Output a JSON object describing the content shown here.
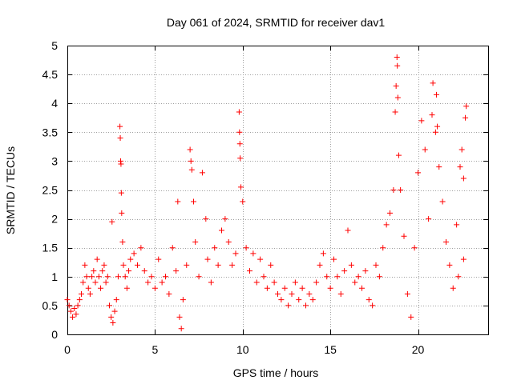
{
  "chart_data": {
    "type": "scatter",
    "title": "Day 061 of 2024, SRMTID for receiver dav1",
    "xlabel": "GPS time / hours",
    "ylabel": "SRMTID / TECUs",
    "xlim": [
      0,
      24
    ],
    "ylim": [
      0,
      5
    ],
    "x_ticks": [
      0,
      5,
      10,
      15,
      20
    ],
    "y_ticks": [
      0,
      0.5,
      1,
      1.5,
      2,
      2.5,
      3,
      3.5,
      4,
      4.5,
      5
    ],
    "x_tick_labels": [
      "0",
      "5",
      "10",
      "15",
      "20"
    ],
    "y_tick_labels": [
      "0",
      "0.5",
      "1",
      "1.5",
      "2",
      "2.5",
      "3",
      "3.5",
      "4",
      "4.5",
      "5"
    ],
    "grid": true,
    "marker": "+",
    "color": "#ff0000",
    "series": [
      {
        "name": "SRMTID",
        "points": [
          [
            0.0,
            0.6
          ],
          [
            0.1,
            0.5
          ],
          [
            0.2,
            0.4
          ],
          [
            0.3,
            0.3
          ],
          [
            0.4,
            0.45
          ],
          [
            0.5,
            0.35
          ],
          [
            0.6,
            0.5
          ],
          [
            0.7,
            0.6
          ],
          [
            0.8,
            0.7
          ],
          [
            0.9,
            0.9
          ],
          [
            1.0,
            1.2
          ],
          [
            1.1,
            1.0
          ],
          [
            1.2,
            0.8
          ],
          [
            1.3,
            0.7
          ],
          [
            1.4,
            1.0
          ],
          [
            1.5,
            1.1
          ],
          [
            1.6,
            0.9
          ],
          [
            1.7,
            1.3
          ],
          [
            1.8,
            1.0
          ],
          [
            1.9,
            0.8
          ],
          [
            2.0,
            1.1
          ],
          [
            2.1,
            1.2
          ],
          [
            2.2,
            0.9
          ],
          [
            2.3,
            1.0
          ],
          [
            2.4,
            0.5
          ],
          [
            2.5,
            0.3
          ],
          [
            2.55,
            1.95
          ],
          [
            2.6,
            0.2
          ],
          [
            2.7,
            0.4
          ],
          [
            2.8,
            0.6
          ],
          [
            2.9,
            1.0
          ],
          [
            3.0,
            3.6
          ],
          [
            3.02,
            3.4
          ],
          [
            3.04,
            3.0
          ],
          [
            3.06,
            2.95
          ],
          [
            3.08,
            2.45
          ],
          [
            3.1,
            2.1
          ],
          [
            3.15,
            1.6
          ],
          [
            3.2,
            1.2
          ],
          [
            3.3,
            1.0
          ],
          [
            3.4,
            0.8
          ],
          [
            3.5,
            1.1
          ],
          [
            3.6,
            1.3
          ],
          [
            3.8,
            1.4
          ],
          [
            4.0,
            1.2
          ],
          [
            4.2,
            1.5
          ],
          [
            4.4,
            1.1
          ],
          [
            4.6,
            0.9
          ],
          [
            4.8,
            1.0
          ],
          [
            5.0,
            0.8
          ],
          [
            5.2,
            1.3
          ],
          [
            5.4,
            0.9
          ],
          [
            5.6,
            1.0
          ],
          [
            5.8,
            0.7
          ],
          [
            6.0,
            1.5
          ],
          [
            6.2,
            1.1
          ],
          [
            6.3,
            2.3
          ],
          [
            6.4,
            0.3
          ],
          [
            6.5,
            0.1
          ],
          [
            6.6,
            0.6
          ],
          [
            6.8,
            1.2
          ],
          [
            7.0,
            3.2
          ],
          [
            7.05,
            3.0
          ],
          [
            7.1,
            2.85
          ],
          [
            7.2,
            2.3
          ],
          [
            7.3,
            1.6
          ],
          [
            7.5,
            1.0
          ],
          [
            7.7,
            2.8
          ],
          [
            7.9,
            2.0
          ],
          [
            8.0,
            1.3
          ],
          [
            8.2,
            0.9
          ],
          [
            8.4,
            1.5
          ],
          [
            8.6,
            1.2
          ],
          [
            8.8,
            1.8
          ],
          [
            9.0,
            2.0
          ],
          [
            9.2,
            1.6
          ],
          [
            9.4,
            1.2
          ],
          [
            9.6,
            1.4
          ],
          [
            9.8,
            3.85
          ],
          [
            9.82,
            3.5
          ],
          [
            9.84,
            3.3
          ],
          [
            9.86,
            3.05
          ],
          [
            9.9,
            2.55
          ],
          [
            10.0,
            2.3
          ],
          [
            10.2,
            1.5
          ],
          [
            10.4,
            1.1
          ],
          [
            10.6,
            1.4
          ],
          [
            10.8,
            0.9
          ],
          [
            11.0,
            1.3
          ],
          [
            11.2,
            1.0
          ],
          [
            11.4,
            0.8
          ],
          [
            11.6,
            1.2
          ],
          [
            11.8,
            0.9
          ],
          [
            12.0,
            0.7
          ],
          [
            12.2,
            0.6
          ],
          [
            12.4,
            0.8
          ],
          [
            12.6,
            0.5
          ],
          [
            12.8,
            0.7
          ],
          [
            13.0,
            0.9
          ],
          [
            13.2,
            0.6
          ],
          [
            13.4,
            0.8
          ],
          [
            13.6,
            0.5
          ],
          [
            13.8,
            0.7
          ],
          [
            14.0,
            0.6
          ],
          [
            14.2,
            0.9
          ],
          [
            14.4,
            1.2
          ],
          [
            14.6,
            1.4
          ],
          [
            14.8,
            1.0
          ],
          [
            15.0,
            0.8
          ],
          [
            15.2,
            1.3
          ],
          [
            15.4,
            1.0
          ],
          [
            15.6,
            0.7
          ],
          [
            15.8,
            1.1
          ],
          [
            16.0,
            1.8
          ],
          [
            16.2,
            1.2
          ],
          [
            16.4,
            0.9
          ],
          [
            16.6,
            1.0
          ],
          [
            16.8,
            0.8
          ],
          [
            17.0,
            1.1
          ],
          [
            17.2,
            0.6
          ],
          [
            17.4,
            0.5
          ],
          [
            17.6,
            1.2
          ],
          [
            17.8,
            1.0
          ],
          [
            18.0,
            1.5
          ],
          [
            18.2,
            1.9
          ],
          [
            18.4,
            2.1
          ],
          [
            18.6,
            2.5
          ],
          [
            18.7,
            3.85
          ],
          [
            18.75,
            4.3
          ],
          [
            18.8,
            4.8
          ],
          [
            18.82,
            4.65
          ],
          [
            18.85,
            4.1
          ],
          [
            18.9,
            3.1
          ],
          [
            19.0,
            2.5
          ],
          [
            19.2,
            1.7
          ],
          [
            19.4,
            0.7
          ],
          [
            19.6,
            0.3
          ],
          [
            19.8,
            1.5
          ],
          [
            20.0,
            2.8
          ],
          [
            20.2,
            3.7
          ],
          [
            20.4,
            3.2
          ],
          [
            20.6,
            2.0
          ],
          [
            20.8,
            3.8
          ],
          [
            20.85,
            4.35
          ],
          [
            21.0,
            3.5
          ],
          [
            21.05,
            4.15
          ],
          [
            21.1,
            3.6
          ],
          [
            21.2,
            2.9
          ],
          [
            21.4,
            2.3
          ],
          [
            21.6,
            1.6
          ],
          [
            21.8,
            1.2
          ],
          [
            22.0,
            0.8
          ],
          [
            22.2,
            1.9
          ],
          [
            22.4,
            2.9
          ],
          [
            22.5,
            3.2
          ],
          [
            22.6,
            2.7
          ],
          [
            22.7,
            3.75
          ],
          [
            22.75,
            3.95
          ],
          [
            22.6,
            1.3
          ],
          [
            22.3,
            1.0
          ]
        ]
      }
    ]
  }
}
